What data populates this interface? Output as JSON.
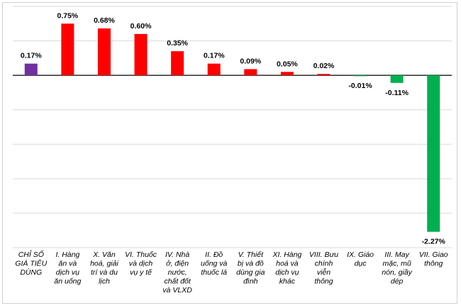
{
  "chart_data": {
    "type": "bar",
    "title": "",
    "xlabel": "",
    "ylabel": "",
    "ylim": [
      -2.5,
      1.0
    ],
    "grid": true,
    "legend": "none",
    "categories": [
      "CHỈ SỐ GIÁ TIÊU DÙNG",
      "I. Hàng ăn và dịch vụ ăn uống",
      "X. Văn hoá, giải trí và du lịch",
      "VI. Thuốc và dịch vụ y tế",
      "IV. Nhà ở, điện nước, chất đốt và VLXD",
      "II. Đồ uống và thuốc lá",
      "V. Thiết bị và đồ dùng gia đình",
      "XI. Hàng hoá và dịch vụ khác",
      "VIII. Bưu chính viễn thông",
      "IX. Giáo dục",
      "III. May mặc, mũ nón, giầy dép",
      "VII. Giao thông"
    ],
    "category_lines": [
      [
        "CHỈ SỐ",
        "GIÁ TIÊU",
        "DÙNG"
      ],
      [
        "I. Hàng",
        "ăn và",
        "dịch vụ",
        "ăn uống"
      ],
      [
        "X. Văn",
        "hoá, giải",
        "trí và du",
        "lịch"
      ],
      [
        "VI. Thuốc",
        "và dịch",
        "vụ y tế"
      ],
      [
        "IV. Nhà",
        "ở, điện",
        "nước,",
        "chất đốt",
        "và VLXD"
      ],
      [
        "II. Đồ",
        "uống và",
        "thuốc lá"
      ],
      [
        "V. Thiết",
        "bị và đồ",
        "dùng gia",
        "đình"
      ],
      [
        "XI. Hàng",
        "hoá và",
        "dịch vụ",
        "khác"
      ],
      [
        "VIII. Bưu",
        "chính",
        "viễn",
        "thông"
      ],
      [
        "IX. Giáo",
        "dục"
      ],
      [
        "III. May",
        "mặc, mũ",
        "nón, giầy",
        "dép"
      ],
      [
        "VII. Giao",
        "thông"
      ]
    ],
    "values": [
      0.17,
      0.75,
      0.68,
      0.6,
      0.35,
      0.17,
      0.09,
      0.05,
      0.02,
      -0.01,
      -0.11,
      -2.27
    ],
    "value_labels": [
      "0.17%",
      "0.75%",
      "0.68%",
      "0.60%",
      "0.35%",
      "0.17%",
      "0.09%",
      "0.05%",
      "0.02%",
      "-0.01%",
      "-0.11%",
      "-2.27%"
    ],
    "colors": {
      "total": "#7030a0",
      "positive": "#ff0000",
      "negative": "#00b050"
    }
  }
}
